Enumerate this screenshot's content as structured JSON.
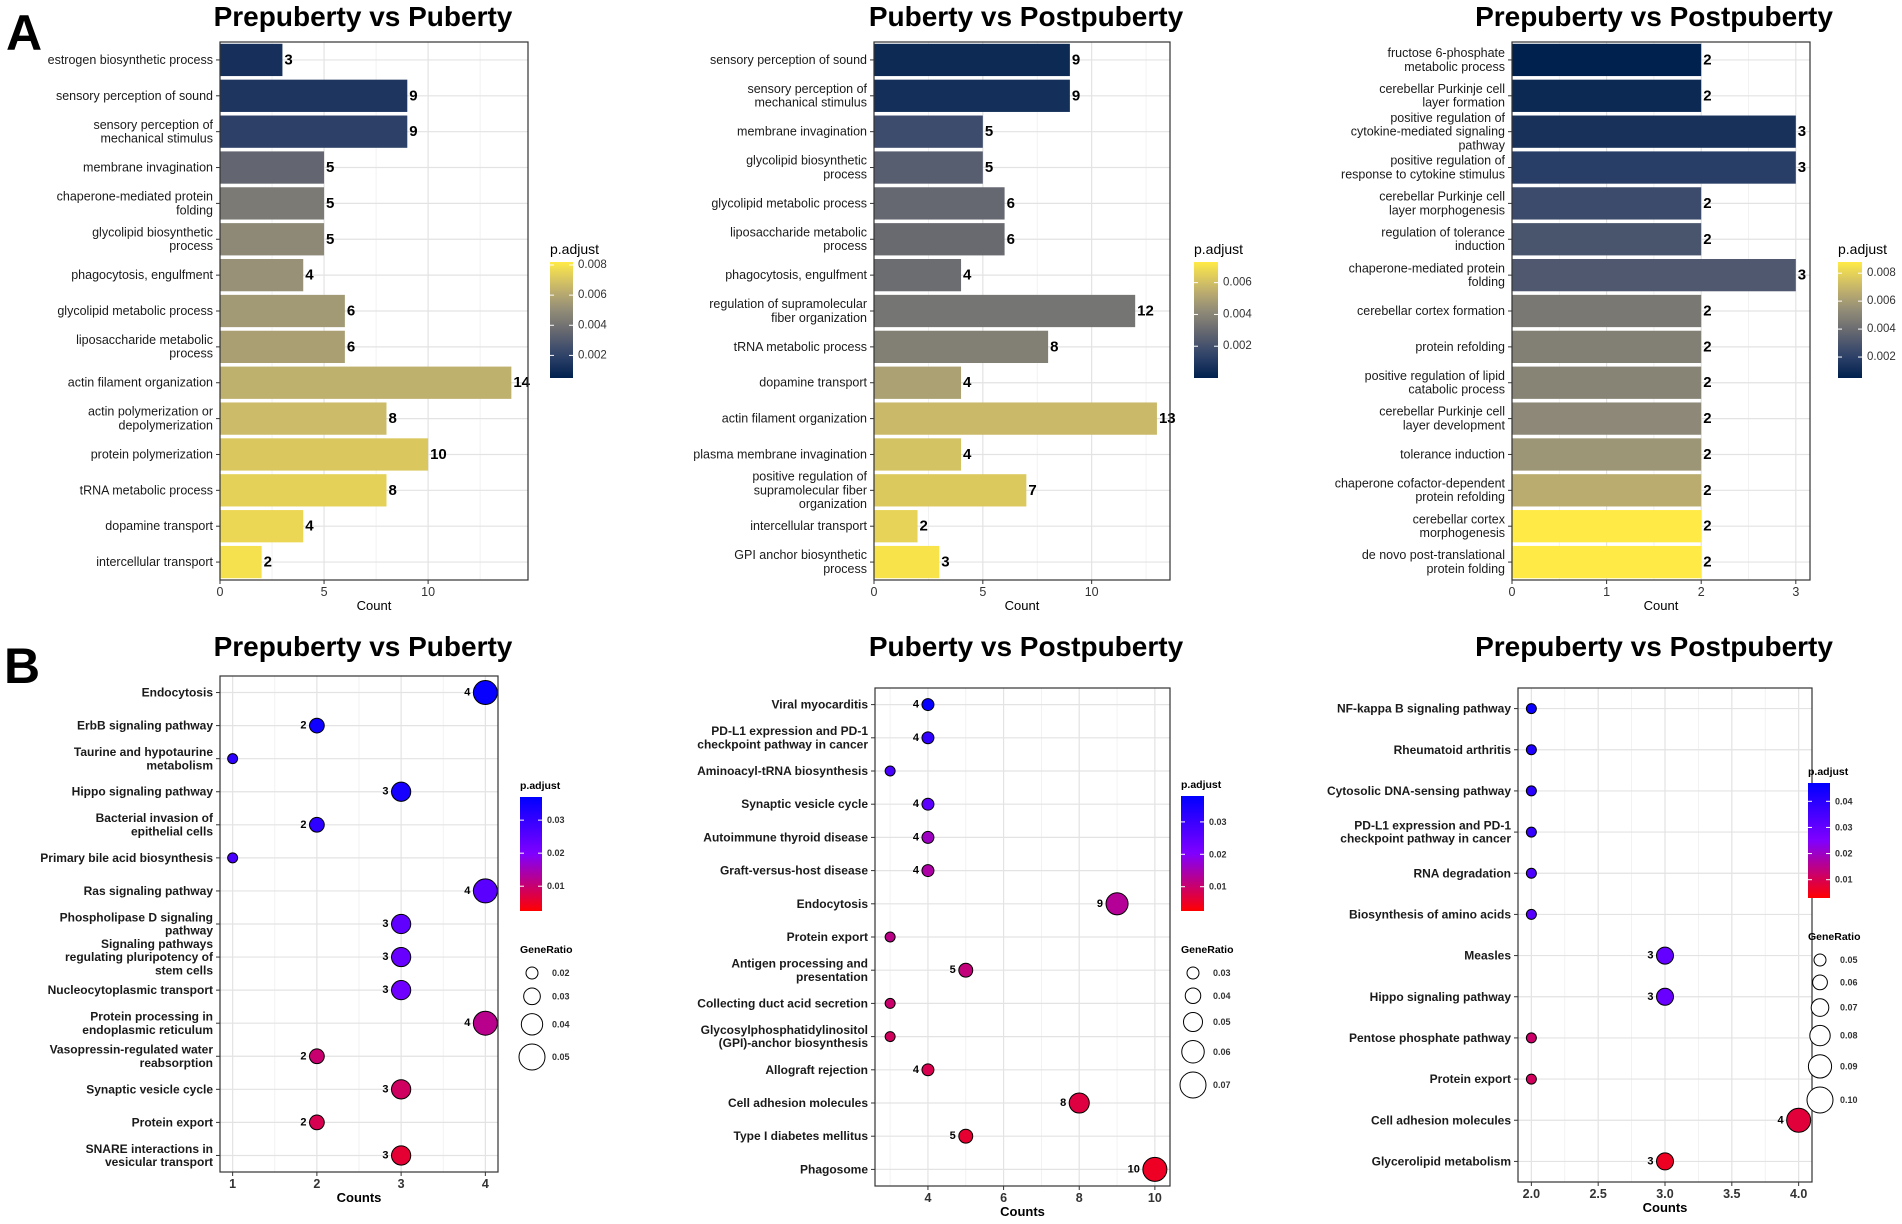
{
  "figure": {
    "panel_a_label": "A",
    "panel_b_label": "B"
  },
  "chart_data": [
    {
      "type": "bar",
      "panel": "A",
      "title": "Prepuberty vs Puberty",
      "xlabel": "Count",
      "ylabel": "",
      "xlim": [
        0,
        14.8
      ],
      "xticks": [
        0,
        5,
        10
      ],
      "grid": true,
      "categories": [
        "estrogen biosynthetic process",
        "sensory perception of sound",
        "sensory perception of\nmechanical stimulus",
        "membrane invagination",
        "chaperone-mediated protein\nfolding",
        "glycolipid biosynthetic\nprocess",
        "phagocytosis, engulfment",
        "glycolipid metabolic process",
        "liposaccharide metabolic\nprocess",
        "actin filament organization",
        "actin polymerization or\ndepolymerization",
        "protein polymerization",
        "tRNA metabolic process",
        "dopamine transport",
        "intercellular transport"
      ],
      "values": [
        3,
        9,
        9,
        5,
        5,
        5,
        4,
        6,
        6,
        14,
        8,
        10,
        8,
        4,
        2
      ],
      "padjust": [
        0.0012,
        0.0014,
        0.0019,
        0.0035,
        0.0043,
        0.0049,
        0.0052,
        0.0055,
        0.0057,
        0.0063,
        0.0067,
        0.0071,
        0.0074,
        0.0076,
        0.0079
      ],
      "color_scale": {
        "title": "p.adjust",
        "min": 0.0005,
        "max": 0.0082,
        "ticks": [
          "0.008",
          "0.006",
          "0.004",
          "0.002"
        ],
        "tick_values": [
          0.008,
          0.006,
          0.004,
          0.002
        ],
        "colors": [
          "#00204d",
          "#31446b",
          "#666870",
          "#958f78",
          "#cbba69",
          "#ffea46"
        ]
      }
    },
    {
      "type": "bar",
      "panel": "A",
      "title": "Puberty vs Postpuberty",
      "xlabel": "Count",
      "ylabel": "",
      "xlim": [
        0,
        13.6
      ],
      "xticks": [
        0,
        5,
        10
      ],
      "grid": true,
      "categories": [
        "sensory perception of sound",
        "sensory perception of\nmechanical stimulus",
        "membrane invagination",
        "glycolipid biosynthetic\nprocess",
        "glycolipid metabolic process",
        "liposaccharide metabolic\nprocess",
        "phagocytosis, engulfment",
        "regulation of supramolecular\nfiber organization",
        "tRNA metabolic process",
        "dopamine transport",
        "actin filament organization",
        "plasma membrane invagination",
        "positive regulation of\nsupramolecular fiber\norganization",
        "intercellular transport",
        "GPI anchor biosynthetic\nprocess"
      ],
      "values": [
        9,
        9,
        5,
        5,
        6,
        6,
        4,
        12,
        8,
        4,
        13,
        4,
        7,
        2,
        3
      ],
      "padjust": [
        0.0004,
        0.0006,
        0.0018,
        0.0025,
        0.0029,
        0.003,
        0.0031,
        0.0034,
        0.0038,
        0.005,
        0.0058,
        0.0061,
        0.0063,
        0.0066,
        0.0071
      ],
      "color_scale": {
        "title": "p.adjust",
        "min": 0.0,
        "max": 0.0073,
        "ticks": [
          "0.006",
          "0.004",
          "0.002"
        ],
        "tick_values": [
          0.006,
          0.004,
          0.002
        ],
        "colors": [
          "#00204d",
          "#31446b",
          "#666870",
          "#958f78",
          "#cbba69",
          "#ffea46"
        ]
      }
    },
    {
      "type": "bar",
      "panel": "A",
      "title": "Prepuberty vs Postpuberty",
      "xlabel": "Count",
      "ylabel": "",
      "xlim": [
        0,
        3.15
      ],
      "xticks": [
        0,
        1,
        2,
        3
      ],
      "grid": true,
      "categories": [
        "fructose 6-phosphate\nmetabolic process",
        "cerebellar Purkinje cell\nlayer formation",
        "positive regulation of\ncytokine-mediated signaling\npathway",
        "positive regulation of\nresponse to cytokine stimulus",
        "cerebellar Purkinje cell\nlayer morphogenesis",
        "regulation of tolerance\ninduction",
        "chaperone-mediated protein\nfolding",
        "cerebellar cortex formation",
        "protein refolding",
        "positive regulation of lipid\ncatabolic process",
        "cerebellar Purkinje cell\nlayer development",
        "tolerance induction",
        "chaperone cofactor-dependent\nprotein refolding",
        "cerebellar cortex\nmorphogenesis",
        "de novo post-translational\nprotein folding"
      ],
      "values": [
        2,
        2,
        3,
        3,
        2,
        2,
        3,
        2,
        2,
        2,
        2,
        2,
        2,
        2,
        2
      ],
      "padjust": [
        0.0003,
        0.0009,
        0.0013,
        0.0019,
        0.0025,
        0.0029,
        0.0031,
        0.0045,
        0.0048,
        0.005,
        0.0052,
        0.0057,
        0.0066,
        0.0089,
        0.009
      ],
      "color_scale": {
        "title": "p.adjust",
        "min": 0.0005,
        "max": 0.0088,
        "ticks": [
          "0.008",
          "0.006",
          "0.004",
          "0.002"
        ],
        "tick_values": [
          0.008,
          0.006,
          0.004,
          0.002
        ],
        "colors": [
          "#00204d",
          "#31446b",
          "#666870",
          "#958f78",
          "#cbba69",
          "#ffea46"
        ]
      }
    },
    {
      "type": "scatter",
      "panel": "B",
      "title": "Prepuberty vs Puberty",
      "xlabel": "Counts",
      "ylabel": "",
      "xlim": [
        0.85,
        4.15
      ],
      "xticks": [
        1,
        2,
        3,
        4
      ],
      "grid": true,
      "categories": [
        "Endocytosis",
        "ErbB signaling pathway",
        "Taurine and hypotaurine\nmetabolism",
        "Hippo signaling pathway",
        "Bacterial invasion of\nepithelial cells",
        "Primary bile acid biosynthesis",
        "Ras signaling pathway",
        "Phospholipase D signaling\npathway",
        "Signaling pathways\nregulating pluripotency of\nstem cells",
        "Nucleocytoplasmic transport",
        "Protein processing in\nendoplasmic reticulum",
        "Vasopressin-regulated water\nreabsorption",
        "Synaptic vesicle cycle",
        "Protein export",
        "SNARE interactions in\nvesicular transport"
      ],
      "x": [
        4,
        2,
        1,
        3,
        2,
        1,
        4,
        3,
        3,
        3,
        4,
        2,
        3,
        2,
        3
      ],
      "labels": [
        "4",
        "2",
        "",
        "3",
        "2",
        "",
        "4",
        "3",
        "3",
        "3",
        "4",
        "2",
        "3",
        "2",
        "3"
      ],
      "gene_ratio": [
        0.058,
        0.029,
        0.014,
        0.043,
        0.029,
        0.014,
        0.058,
        0.043,
        0.043,
        0.043,
        0.058,
        0.029,
        0.043,
        0.029,
        0.043
      ],
      "padjust": [
        0.036,
        0.035,
        0.031,
        0.034,
        0.031,
        0.027,
        0.025,
        0.024,
        0.023,
        0.022,
        0.012,
        0.01,
        0.009,
        0.008,
        0.006
      ],
      "color_scale": {
        "title": "p.adjust",
        "min": 0.0025,
        "max": 0.037,
        "ticks": [
          "0.01",
          "0.02",
          "0.03"
        ],
        "tick_values": [
          0.01,
          0.02,
          0.03
        ],
        "colors": [
          "#ff0000",
          "#8000ff",
          "#0000ff"
        ]
      },
      "size_legend": {
        "title": "GeneRatio",
        "values": [
          0.02,
          0.03,
          0.04,
          0.05
        ],
        "labels": [
          "0.02",
          "0.03",
          "0.04",
          "0.05"
        ]
      }
    },
    {
      "type": "scatter",
      "panel": "B",
      "title": "Puberty vs Postpuberty",
      "xlabel": "Counts",
      "ylabel": "",
      "xlim": [
        2.6,
        10.4
      ],
      "xticks": [
        4,
        6,
        8,
        10
      ],
      "grid": true,
      "categories": [
        "Viral myocarditis",
        "PD-L1 expression and PD-1\ncheckpoint pathway in cancer",
        "Aminoacyl-tRNA biosynthesis",
        "Synaptic vesicle cycle",
        "Autoimmune thyroid disease",
        "Graft-versus-host disease",
        "Endocytosis",
        "Protein export",
        "Antigen processing and\npresentation",
        "Collecting duct acid secretion",
        "Glycosylphosphatidylinositol\n(GPI)-anchor biosynthesis",
        "Allograft rejection",
        "Cell adhesion molecules",
        "Type I diabetes mellitus",
        "Phagosome"
      ],
      "x": [
        4,
        4,
        3,
        4,
        4,
        4,
        9,
        3,
        5,
        3,
        3,
        4,
        8,
        5,
        10
      ],
      "labels": [
        "4",
        "4",
        "",
        "4",
        "4",
        "4",
        "9",
        "",
        "5",
        "",
        "",
        "4",
        "8",
        "5",
        "10"
      ],
      "gene_ratio": [
        0.028,
        0.028,
        0.021,
        0.028,
        0.028,
        0.028,
        0.064,
        0.021,
        0.035,
        0.021,
        0.021,
        0.028,
        0.057,
        0.035,
        0.071
      ],
      "padjust": [
        0.037,
        0.031,
        0.028,
        0.025,
        0.016,
        0.014,
        0.013,
        0.012,
        0.011,
        0.01,
        0.009,
        0.008,
        0.007,
        0.006,
        0.005
      ],
      "color_scale": {
        "title": "p.adjust",
        "min": 0.0025,
        "max": 0.038,
        "ticks": [
          "0.01",
          "0.02",
          "0.03"
        ],
        "tick_values": [
          0.01,
          0.02,
          0.03
        ],
        "colors": [
          "#ff0000",
          "#8000ff",
          "#0000ff"
        ]
      },
      "size_legend": {
        "title": "GeneRatio",
        "values": [
          0.03,
          0.04,
          0.05,
          0.06,
          0.07
        ],
        "labels": [
          "0.03",
          "0.04",
          "0.05",
          "0.06",
          "0.07"
        ]
      }
    },
    {
      "type": "scatter",
      "panel": "B",
      "title": "Prepuberty vs Postpuberty",
      "xlabel": "Counts",
      "ylabel": "",
      "xlim": [
        1.9,
        4.1
      ],
      "xticks": [
        2.0,
        2.5,
        3.0,
        3.5,
        4.0
      ],
      "xtick_labels": [
        "2.0",
        "2.5",
        "3.0",
        "3.5",
        "4.0"
      ],
      "grid": true,
      "categories": [
        "NF-kappa B signaling pathway",
        "Rheumatoid arthritis",
        "Cytosolic DNA-sensing pathway",
        "PD-L1 expression and PD-1\ncheckpoint pathway in cancer",
        "RNA degradation",
        "Biosynthesis of amino acids",
        "Measles",
        "Hippo signaling pathway",
        "Pentose phosphate pathway",
        "Protein export",
        "Cell adhesion molecules",
        "Glycerolipid metabolism"
      ],
      "x": [
        2,
        2,
        2,
        2,
        2,
        2,
        3,
        3,
        2,
        2,
        4,
        3
      ],
      "labels": [
        "",
        "",
        "",
        "",
        "",
        "",
        "3",
        "3",
        "",
        "",
        "4",
        "3"
      ],
      "gene_ratio": [
        0.04,
        0.04,
        0.04,
        0.04,
        0.04,
        0.04,
        0.06,
        0.06,
        0.04,
        0.04,
        0.08,
        0.06
      ],
      "padjust": [
        0.045,
        0.042,
        0.04,
        0.038,
        0.034,
        0.032,
        0.03,
        0.029,
        0.012,
        0.011,
        0.008,
        0.006
      ],
      "color_scale": {
        "title": "p.adjust",
        "min": 0.003,
        "max": 0.047,
        "ticks": [
          "0.01",
          "0.02",
          "0.03",
          "0.04"
        ],
        "tick_values": [
          0.01,
          0.02,
          0.03,
          0.04
        ],
        "colors": [
          "#ff0000",
          "#8000ff",
          "#0000ff"
        ]
      },
      "size_legend": {
        "title": "GeneRatio",
        "values": [
          0.05,
          0.06,
          0.07,
          0.08,
          0.09,
          0.1
        ],
        "labels": [
          "0.05",
          "0.06",
          "0.07",
          "0.08",
          "0.09",
          "0.10"
        ]
      }
    }
  ]
}
